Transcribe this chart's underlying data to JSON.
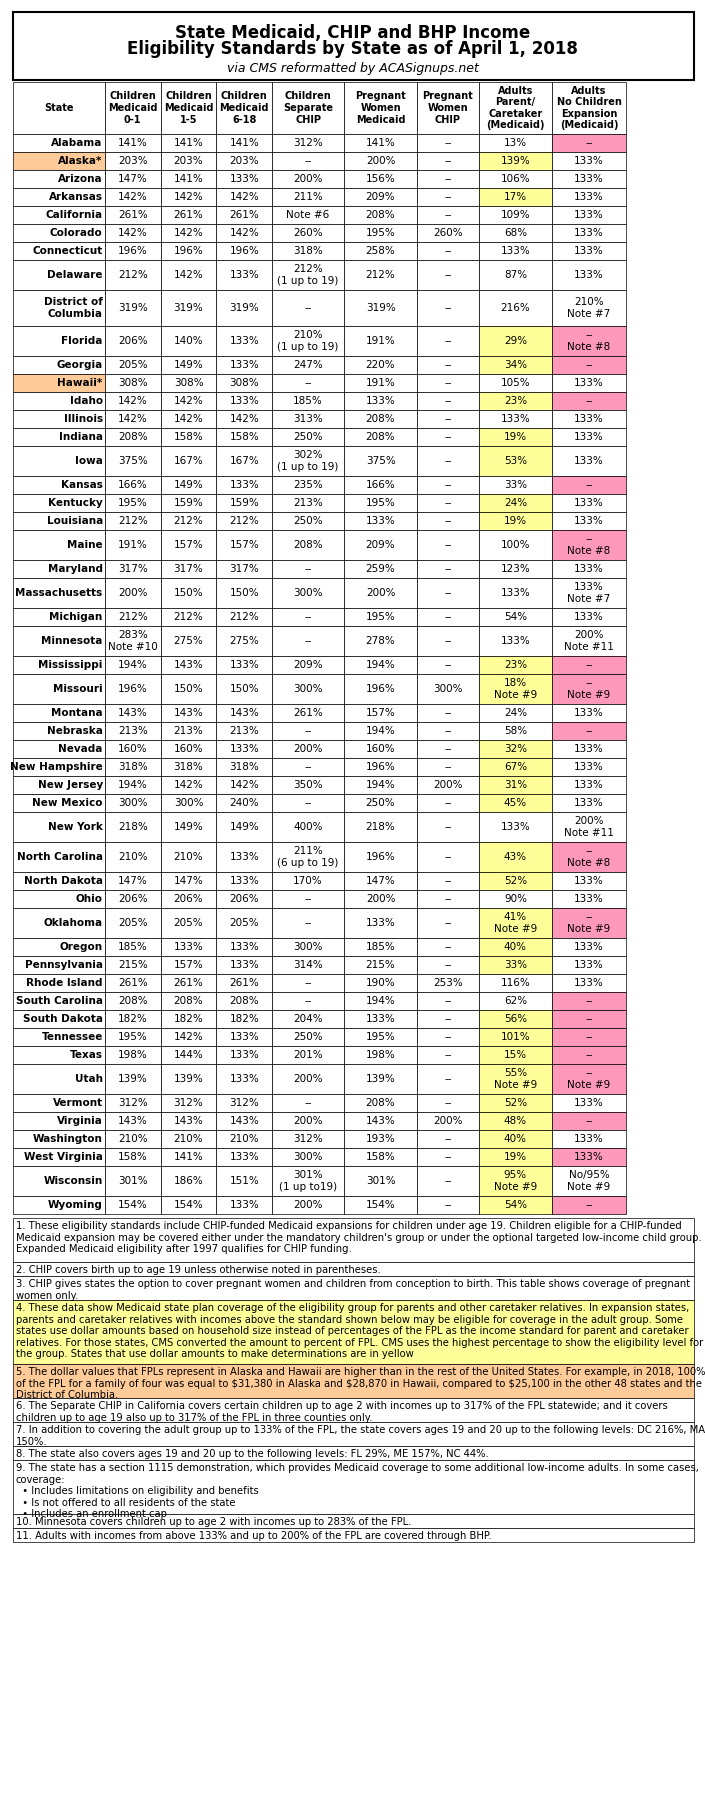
{
  "title_line1": "State Medicaid, CHIP and BHP Income",
  "title_line2": "Eligibility Standards by State as of April 1, 2018",
  "title_line3": "via CMS reformatted by ACASignups.net",
  "col_headers": [
    "State",
    "Children\nMedicaid\n0-1",
    "Children\nMedicaid\n1-5",
    "Children\nMedicaid\n6-18",
    "Children\nSeparate\nCHIP",
    "Pregnant\nWomen\nMedicaid",
    "Pregnant\nWomen\nCHIP",
    "Adults\nParent/\nCaretaker\n(Medicaid)",
    "Adults\nNo Children\nExpansion\n(Medicaid)"
  ],
  "rows": [
    [
      "Alabama",
      "141%",
      "141%",
      "141%",
      "312%",
      "141%",
      "--",
      "13%",
      "--"
    ],
    [
      "Alaska*",
      "203%",
      "203%",
      "203%",
      "--",
      "200%",
      "--",
      "139%",
      "133%"
    ],
    [
      "Arizona",
      "147%",
      "141%",
      "133%",
      "200%",
      "156%",
      "--",
      "106%",
      "133%"
    ],
    [
      "Arkansas",
      "142%",
      "142%",
      "142%",
      "211%",
      "209%",
      "--",
      "17%",
      "133%"
    ],
    [
      "California",
      "261%",
      "261%",
      "261%",
      "Note #6",
      "208%",
      "--",
      "109%",
      "133%"
    ],
    [
      "Colorado",
      "142%",
      "142%",
      "142%",
      "260%",
      "195%",
      "260%",
      "68%",
      "133%"
    ],
    [
      "Connecticut",
      "196%",
      "196%",
      "196%",
      "318%",
      "258%",
      "--",
      "133%",
      "133%"
    ],
    [
      "Delaware",
      "212%",
      "142%",
      "133%",
      "212%\n(1 up to 19)",
      "212%",
      "--",
      "87%",
      "133%"
    ],
    [
      "District of\nColumbia",
      "319%",
      "319%",
      "319%",
      "--",
      "319%",
      "--",
      "216%",
      "210%\nNote #7"
    ],
    [
      "Florida",
      "206%",
      "140%",
      "133%",
      "210%\n(1 up to 19)",
      "191%",
      "--",
      "29%",
      "--\nNote #8"
    ],
    [
      "Georgia",
      "205%",
      "149%",
      "133%",
      "247%",
      "220%",
      "--",
      "34%",
      "--"
    ],
    [
      "Hawaii*",
      "308%",
      "308%",
      "308%",
      "--",
      "191%",
      "--",
      "105%",
      "133%"
    ],
    [
      "Idaho",
      "142%",
      "142%",
      "133%",
      "185%",
      "133%",
      "--",
      "23%",
      "--"
    ],
    [
      "Illinois",
      "142%",
      "142%",
      "142%",
      "313%",
      "208%",
      "--",
      "133%",
      "133%"
    ],
    [
      "Indiana",
      "208%",
      "158%",
      "158%",
      "250%",
      "208%",
      "--",
      "19%",
      "133%"
    ],
    [
      "Iowa",
      "375%",
      "167%",
      "167%",
      "302%\n(1 up to 19)",
      "375%",
      "--",
      "53%",
      "133%"
    ],
    [
      "Kansas",
      "166%",
      "149%",
      "133%",
      "235%",
      "166%",
      "--",
      "33%",
      "--"
    ],
    [
      "Kentucky",
      "195%",
      "159%",
      "159%",
      "213%",
      "195%",
      "--",
      "24%",
      "133%"
    ],
    [
      "Louisiana",
      "212%",
      "212%",
      "212%",
      "250%",
      "133%",
      "--",
      "19%",
      "133%"
    ],
    [
      "Maine",
      "191%",
      "157%",
      "157%",
      "208%",
      "209%",
      "--",
      "100%",
      "--\nNote #8"
    ],
    [
      "Maryland",
      "317%",
      "317%",
      "317%",
      "--",
      "259%",
      "--",
      "123%",
      "133%"
    ],
    [
      "Massachusetts",
      "200%",
      "150%",
      "150%",
      "300%",
      "200%",
      "--",
      "133%",
      "133%\nNote #7"
    ],
    [
      "Michigan",
      "212%",
      "212%",
      "212%",
      "--",
      "195%",
      "--",
      "54%",
      "133%"
    ],
    [
      "Minnesota",
      "283%\nNote #10",
      "275%",
      "275%",
      "--",
      "278%",
      "--",
      "133%",
      "200%\nNote #11"
    ],
    [
      "Mississippi",
      "194%",
      "143%",
      "133%",
      "209%",
      "194%",
      "--",
      "23%",
      "--"
    ],
    [
      "Missouri",
      "196%",
      "150%",
      "150%",
      "300%",
      "196%",
      "300%",
      "18%\nNote #9",
      "--\nNote #9"
    ],
    [
      "Montana",
      "143%",
      "143%",
      "143%",
      "261%",
      "157%",
      "--",
      "24%",
      "133%"
    ],
    [
      "Nebraska",
      "213%",
      "213%",
      "213%",
      "--",
      "194%",
      "--",
      "58%",
      "--"
    ],
    [
      "Nevada",
      "160%",
      "160%",
      "133%",
      "200%",
      "160%",
      "--",
      "32%",
      "133%"
    ],
    [
      "New Hampshire",
      "318%",
      "318%",
      "318%",
      "--",
      "196%",
      "--",
      "67%",
      "133%"
    ],
    [
      "New Jersey",
      "194%",
      "142%",
      "142%",
      "350%",
      "194%",
      "200%",
      "31%",
      "133%"
    ],
    [
      "New Mexico",
      "300%",
      "300%",
      "240%",
      "--",
      "250%",
      "--",
      "45%",
      "133%"
    ],
    [
      "New York",
      "218%",
      "149%",
      "149%",
      "400%",
      "218%",
      "--",
      "133%",
      "200%\nNote #11"
    ],
    [
      "North Carolina",
      "210%",
      "210%",
      "133%",
      "211%\n(6 up to 19)",
      "196%",
      "--",
      "43%",
      "--\nNote #8"
    ],
    [
      "North Dakota",
      "147%",
      "147%",
      "133%",
      "170%",
      "147%",
      "--",
      "52%",
      "133%"
    ],
    [
      "Ohio",
      "206%",
      "206%",
      "206%",
      "--",
      "200%",
      "--",
      "90%",
      "133%"
    ],
    [
      "Oklahoma",
      "205%",
      "205%",
      "205%",
      "--",
      "133%",
      "--",
      "41%\nNote #9",
      "--\nNote #9"
    ],
    [
      "Oregon",
      "185%",
      "133%",
      "133%",
      "300%",
      "185%",
      "--",
      "40%",
      "133%"
    ],
    [
      "Pennsylvania",
      "215%",
      "157%",
      "133%",
      "314%",
      "215%",
      "--",
      "33%",
      "133%"
    ],
    [
      "Rhode Island",
      "261%",
      "261%",
      "261%",
      "--",
      "190%",
      "253%",
      "116%",
      "133%"
    ],
    [
      "South Carolina",
      "208%",
      "208%",
      "208%",
      "--",
      "194%",
      "--",
      "62%",
      "--"
    ],
    [
      "South Dakota",
      "182%",
      "182%",
      "182%",
      "204%",
      "133%",
      "--",
      "56%",
      "--"
    ],
    [
      "Tennessee",
      "195%",
      "142%",
      "133%",
      "250%",
      "195%",
      "--",
      "101%",
      "--"
    ],
    [
      "Texas",
      "198%",
      "144%",
      "133%",
      "201%",
      "198%",
      "--",
      "15%",
      "--"
    ],
    [
      "Utah",
      "139%",
      "139%",
      "133%",
      "200%",
      "139%",
      "--",
      "55%\nNote #9",
      "--\nNote #9"
    ],
    [
      "Vermont",
      "312%",
      "312%",
      "312%",
      "--",
      "208%",
      "--",
      "52%",
      "133%"
    ],
    [
      "Virginia",
      "143%",
      "143%",
      "143%",
      "200%",
      "143%",
      "200%",
      "48%",
      "--"
    ],
    [
      "Washington",
      "210%",
      "210%",
      "210%",
      "312%",
      "193%",
      "--",
      "40%",
      "133%"
    ],
    [
      "West Virginia",
      "158%",
      "141%",
      "133%",
      "300%",
      "158%",
      "--",
      "19%",
      "133%"
    ],
    [
      "Wisconsin",
      "301%",
      "186%",
      "151%",
      "301%\n(1 up to19)",
      "301%",
      "--",
      "95%\nNote #9",
      "No/95%\nNote #9"
    ],
    [
      "Wyoming",
      "154%",
      "154%",
      "133%",
      "200%",
      "154%",
      "--",
      "54%",
      "--"
    ]
  ],
  "row_colors": {
    "Alaska*": "#FFCC99",
    "Hawaii*": "#FFCC99"
  },
  "yellow_cells": {
    "Alaska*": [
      6
    ],
    "Arkansas": [
      6
    ],
    "Florida": [
      6
    ],
    "Georgia": [
      6
    ],
    "Idaho": [
      6
    ],
    "Indiana": [
      6
    ],
    "Iowa": [
      6
    ],
    "Kentucky": [
      6
    ],
    "Louisiana": [
      6
    ],
    "Mississippi": [
      6
    ],
    "Missouri": [
      6
    ],
    "Nevada": [
      6
    ],
    "New Hampshire": [
      6
    ],
    "New Jersey": [
      6
    ],
    "New Mexico": [
      6
    ],
    "North Carolina": [
      6
    ],
    "North Dakota": [
      6
    ],
    "Oklahoma": [
      6
    ],
    "Oregon": [
      6
    ],
    "Pennsylvania": [
      6
    ],
    "South Dakota": [
      6
    ],
    "Tennessee": [
      6
    ],
    "Texas": [
      6
    ],
    "Utah": [
      6
    ],
    "Vermont": [
      6
    ],
    "Virginia": [
      6
    ],
    "Washington": [
      6
    ],
    "West Virginia": [
      6
    ],
    "Wisconsin": [
      6
    ],
    "Wyoming": [
      6
    ]
  },
  "pink_cells_col7": [
    "Alabama",
    "Florida",
    "Georgia",
    "Idaho",
    "Kansas",
    "Maine",
    "Mississippi",
    "Missouri",
    "Nebraska",
    "North Carolina",
    "Oklahoma",
    "South Carolina",
    "South Dakota",
    "Tennessee",
    "Texas",
    "Utah",
    "Virginia",
    "Wyoming"
  ],
  "notes": [
    "1. These eligibility standards include CHIP-funded Medicaid expansions for children under age 19. Children eligible for a CHIP-funded Medicaid expansion may be covered either under the mandatory children's group or under the optional targeted low-income child group. Expanded Medicaid eligibility after 1997 qualifies for CHIP funding.",
    "2. CHIP covers birth up to age 19 unless otherwise noted in parentheses.",
    "3. CHIP gives states the option to cover pregnant women and children from conception to birth. This table shows coverage of pregnant women only.",
    "4. These data show Medicaid state plan coverage of the eligibility group for parents and other caretaker relatives. In expansion states, parents and caretaker relatives with incomes above the standard shown below may be eligible for coverage in the adult group. Some states use dollar amounts based on household size instead of percentages of the FPL as the income standard for parent and caretaker relatives. For those states, CMS converted the amount to percent of FPL. CMS uses the highest percentage to show the eligibility level for the group. States that use dollar amounts to make determinations are in yellow",
    "5. The dollar values that FPLs represent in Alaska and Hawaii are higher than in the rest of the United States. For example, in 2018, 100% of the FPL for a family of four was equal to $31,380 in Alaska and $28,870 in Hawaii, compared to $25,100 in the other 48 states and the District of Columbia.",
    "6. The Separate CHIP in California covers certain children up to age 2 with incomes up to 317% of the FPL statewide; and it covers children up to age 19 also up to 317% of the FPL in three counties only.",
    "7. In addition to covering the adult group up to 133% of the FPL, the state covers ages 19 and 20 up to the following levels: DC 216%, MA 150%.",
    "8. The state also covers ages 19 and 20 up to the following levels: FL 29%, ME 157%, NC 44%.",
    "9. The state has a section 1115 demonstration, which provides Medicaid coverage to some additional low-income adults. In some cases, coverage:\n  • Includes limitations on eligibility and benefits\n  • Is not offered to all residents of the state\n  • Includes an enrollment cap",
    "10. Minnesota covers children up to age 2 with incomes up to 283% of the FPL.",
    "11. Adults with incomes from above 133% and up to 200% of the FPL are covered through BHP."
  ],
  "note_colors": {
    "4": "#FFFF99",
    "5": "#FFCC99"
  }
}
